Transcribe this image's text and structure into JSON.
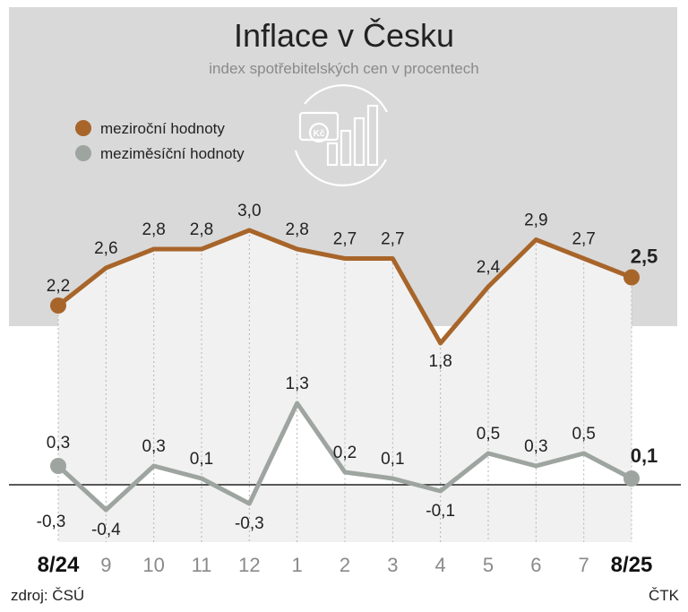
{
  "chart_data": {
    "type": "line",
    "title": "Inflace v Česku",
    "subtitle": "index spotřebitelských cen v procentech",
    "categories": [
      "8/24",
      "9",
      "10",
      "11",
      "12",
      "1",
      "2",
      "3",
      "4",
      "5",
      "6",
      "7",
      "8/25"
    ],
    "value_labels_shown": true,
    "legend_placement": "top-left",
    "series": [
      {
        "name": "meziroční hodnoty",
        "color": "#a8652a",
        "values": [
          2.2,
          2.6,
          2.8,
          2.8,
          3.0,
          2.8,
          2.7,
          2.7,
          1.8,
          2.4,
          2.9,
          2.7,
          2.5
        ],
        "labels": [
          "2,2",
          "2,6",
          "2,8",
          "2,8",
          "3,0",
          "2,8",
          "2,7",
          "2,7",
          "1,8",
          "2,4",
          "2,9",
          "2,7",
          "2,5"
        ]
      },
      {
        "name": "meziměsíční hodnoty",
        "color": "#9ea5a0",
        "values": [
          0.3,
          -0.4,
          0.3,
          0.1,
          -0.3,
          1.3,
          0.2,
          0.1,
          -0.1,
          0.5,
          0.3,
          0.5,
          0.1
        ],
        "labels": [
          "0,3",
          "-0,4",
          "0,3",
          "0,1",
          "-0,3",
          "1,3",
          "0,2",
          "0,1",
          "-0,1",
          "0,5",
          "0,3",
          "0,5",
          "0,1"
        ],
        "extra_label": "-0,3"
      }
    ],
    "colors": {
      "panel": "#d9d9d9",
      "axis": "#222222",
      "grid": "#b5b5b5"
    }
  },
  "footer": {
    "source": "zdroj: ČSÚ",
    "agency": "ČTK"
  },
  "icon": "money-bar-chart-icon"
}
